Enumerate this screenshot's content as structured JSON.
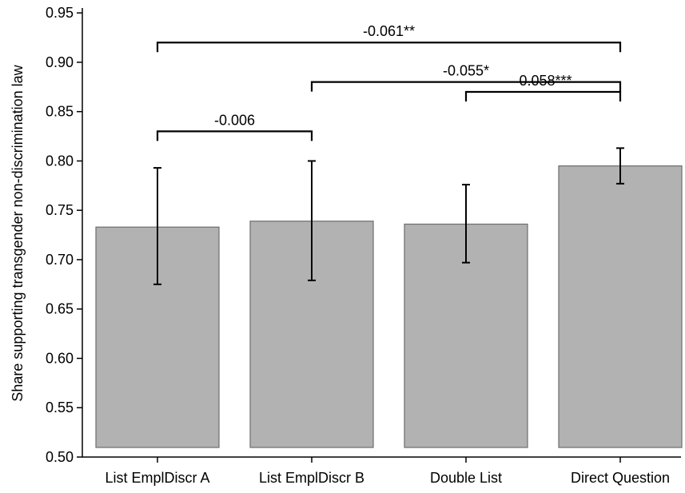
{
  "chart_data": {
    "type": "bar",
    "ylabel": "Share supporting transgender non-discrimination law",
    "xlabel": "",
    "ylim": [
      0.5,
      0.955
    ],
    "yticks": [
      "0.50",
      "0.55",
      "0.60",
      "0.65",
      "0.70",
      "0.75",
      "0.80",
      "0.85",
      "0.90",
      "0.95"
    ],
    "categories": [
      "List EmplDiscr A",
      "List EmplDiscr B",
      "Double List",
      "Direct Question"
    ],
    "values": [
      0.733,
      0.739,
      0.736,
      0.795
    ],
    "ci_low": [
      0.675,
      0.679,
      0.697,
      0.777
    ],
    "ci_high": [
      0.793,
      0.8,
      0.776,
      0.813
    ],
    "bar_color": "#b2b2b2",
    "grid": false,
    "comparisons": [
      {
        "from": 0,
        "to": 1,
        "y": 0.83,
        "label": "-0.006"
      },
      {
        "from": 2,
        "to": 3,
        "y": 0.87,
        "label": "-0.058***"
      },
      {
        "from": 1,
        "to": 3,
        "y": 0.88,
        "label": "-0.055*"
      },
      {
        "from": 0,
        "to": 3,
        "y": 0.92,
        "label": "-0.061**"
      }
    ]
  }
}
